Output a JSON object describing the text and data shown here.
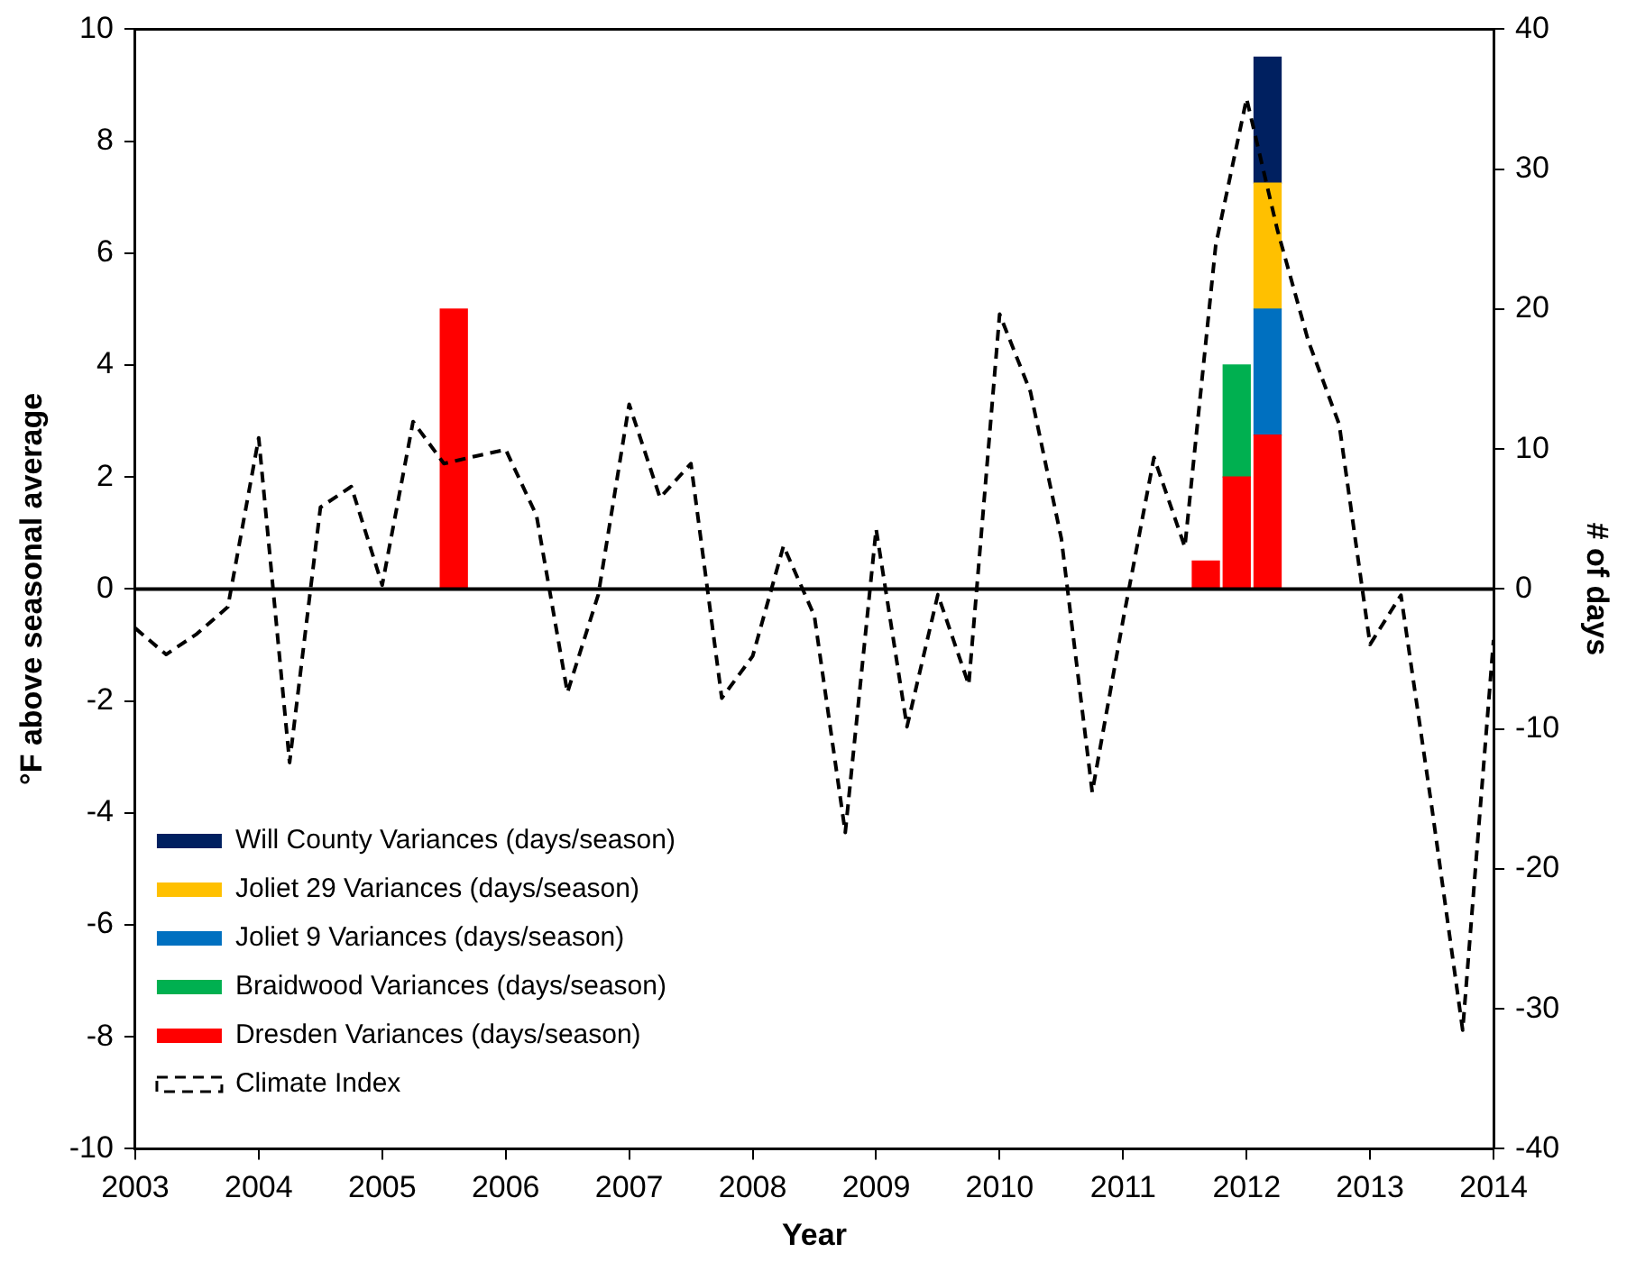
{
  "chart_data": {
    "type": "bar",
    "stacked": true,
    "xlabel": "Year",
    "ylabel": "°F above seasonal average",
    "y2label": "# of days",
    "xlim": [
      2003,
      2014
    ],
    "xticks": [
      2003,
      2004,
      2005,
      2006,
      2007,
      2008,
      2009,
      2010,
      2011,
      2012,
      2013,
      2014
    ],
    "ylim": [
      -10,
      10
    ],
    "yticks": [
      -10,
      -8,
      -6,
      -4,
      -2,
      0,
      2,
      4,
      6,
      8,
      10
    ],
    "y2lim": [
      -40,
      40
    ],
    "y2ticks": [
      -40,
      -30,
      -20,
      -10,
      0,
      10,
      20,
      30,
      40
    ],
    "grid": false,
    "legend": "bottom left",
    "ref_lines": [
      {
        "axis": "y",
        "value": 0,
        "color": "#000000"
      }
    ],
    "x": [
      2005.58,
      2011.67,
      2011.92,
      2012.17
    ],
    "series": [
      {
        "name": "Dresden Variances (days/season)",
        "color": "#ff0000",
        "axis": "y2",
        "values": [
          20,
          2,
          8,
          11
        ]
      },
      {
        "name": "Braidwood Variances (days/season)",
        "color": "#00b050",
        "axis": "y2",
        "values": [
          null,
          null,
          8,
          null
        ]
      },
      {
        "name": "Joliet 9 Variances (days/season)",
        "color": "#0070c0",
        "axis": "y2",
        "values": [
          null,
          null,
          null,
          9
        ]
      },
      {
        "name": "Joliet 29 Variances (days/season)",
        "color": "#ffc000",
        "axis": "y2",
        "values": [
          null,
          null,
          null,
          9
        ]
      },
      {
        "name": "Will County Variances (days/season)",
        "color": "#002060",
        "axis": "y2",
        "values": [
          null,
          null,
          null,
          9
        ]
      },
      {
        "name": "Climate Index",
        "type": "line",
        "color": "#000000",
        "line_style": "dashed",
        "marker": "none",
        "axis": "y",
        "x": [
          2003,
          2003.25,
          2003.5,
          2003.75,
          2004,
          2004.25,
          2004.5,
          2004.75,
          2005,
          2005.25,
          2005.5,
          2005.75,
          2006,
          2006.25,
          2006.5,
          2006.75,
          2007,
          2007.25,
          2007.5,
          2007.75,
          2008,
          2008.25,
          2008.5,
          2008.75,
          2009,
          2009.25,
          2009.5,
          2009.75,
          2010,
          2010.25,
          2010.5,
          2010.75,
          2011,
          2011.25,
          2011.5,
          2011.75,
          2012,
          2012.25,
          2012.5,
          2012.75,
          2013,
          2013.25,
          2013.5,
          2013.75,
          2014
        ],
        "values": [
          -0.7,
          -1.17,
          -0.8,
          -0.32,
          2.7,
          -3.1,
          1.46,
          1.83,
          0.07,
          2.99,
          2.24,
          2.37,
          2.49,
          1.31,
          -1.85,
          -0.1,
          3.3,
          1.63,
          2.24,
          -1.95,
          -1.2,
          0.77,
          -0.48,
          -4.35,
          1.07,
          -2.46,
          -0.1,
          -1.71,
          4.91,
          3.52,
          0.9,
          -3.63,
          -0.55,
          2.35,
          0.75,
          6.14,
          8.76,
          6.41,
          4.43,
          2.94,
          -0.99,
          -0.11,
          -3.9,
          -7.88,
          -0.91
        ]
      }
    ]
  }
}
